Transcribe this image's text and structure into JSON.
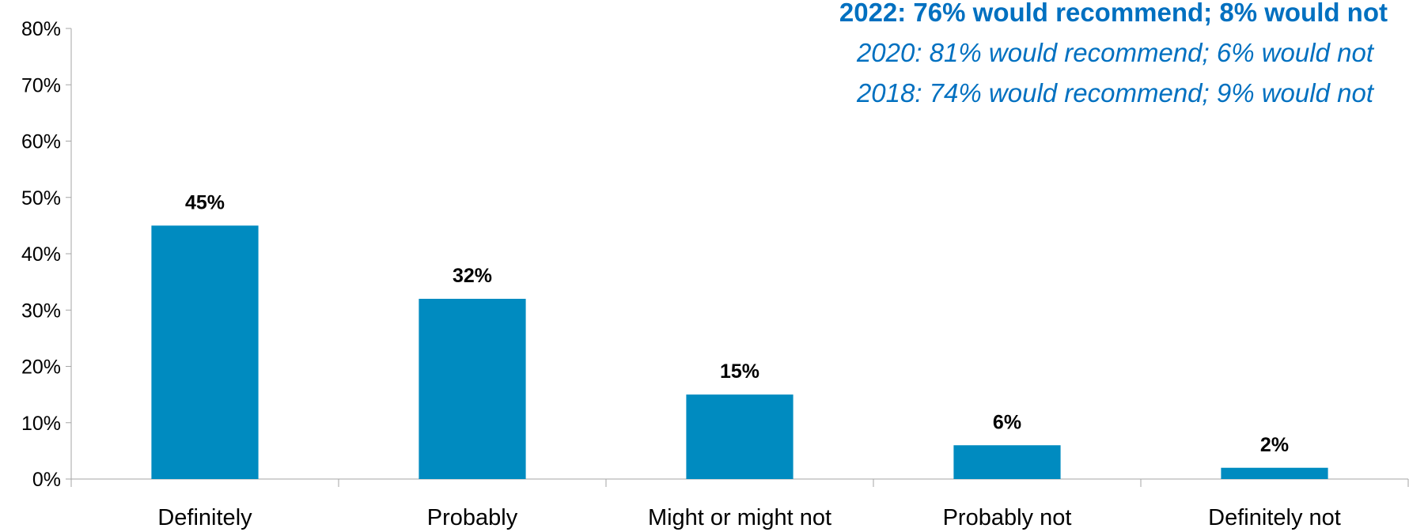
{
  "chart_data": {
    "type": "bar",
    "categories": [
      "Definitely",
      "Probably",
      "Might or might not",
      "Probably not",
      "Definitely not"
    ],
    "values": [
      45,
      32,
      15,
      6,
      2
    ],
    "data_labels": [
      "45%",
      "32%",
      "15%",
      "6%",
      "2%"
    ],
    "title": "",
    "xlabel": "",
    "ylabel": "",
    "ylim": [
      0,
      80
    ],
    "yticks": [
      0,
      10,
      20,
      30,
      40,
      50,
      60,
      70,
      80
    ],
    "ytick_labels": [
      "0%",
      "10%",
      "20%",
      "30%",
      "40%",
      "50%",
      "60%",
      "70%",
      "80%"
    ],
    "grid": false,
    "bar_color": "#008BC0",
    "annotations": [
      {
        "text": "2022: 76% would recommend; 8% would not",
        "style": "bold",
        "color": "#0070C0"
      },
      {
        "text": "2020: 81% would recommend; 6% would not",
        "style": "italic",
        "color": "#0070C0"
      },
      {
        "text": "2018: 74% would recommend; 9% would not",
        "style": "italic",
        "color": "#0070C0"
      }
    ]
  }
}
